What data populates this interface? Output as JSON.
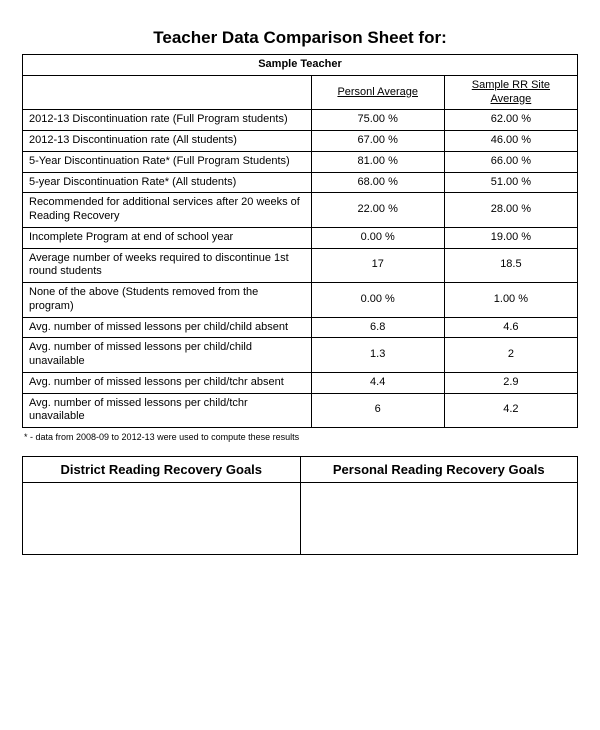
{
  "title": "Teacher Data Comparison Sheet for:",
  "teacher_name": "Sample Teacher",
  "columns": {
    "c1": "Personl Average",
    "c2": "Sample RR Site Average"
  },
  "rows": [
    {
      "label": "2012-13 Discontinuation rate (Full Program students)",
      "v1": "75.00 %",
      "v2": "62.00 %"
    },
    {
      "label": "2012-13 Discontinuation rate (All students)",
      "v1": "67.00 %",
      "v2": "46.00 %"
    },
    {
      "label": "5-Year Discontinuation Rate* (Full Program Students)",
      "v1": "81.00 %",
      "v2": "66.00 %"
    },
    {
      "label": "5-year Discontinuation Rate* (All students)",
      "v1": "68.00 %",
      "v2": "51.00 %"
    },
    {
      "label": "Recommended for additional services after 20 weeks of Reading Recovery",
      "v1": "22.00 %",
      "v2": "28.00 %"
    },
    {
      "label": "Incomplete Program at end of school year",
      "v1": "0.00 %",
      "v2": "19.00 %"
    },
    {
      "label": "Average number of weeks required to discontinue 1st round students",
      "v1": "17",
      "v2": "18.5"
    },
    {
      "label": "None of the above (Students removed from the program)",
      "v1": "0.00 %",
      "v2": "1.00 %"
    },
    {
      "label": "Avg. number of missed lessons per child/child absent",
      "v1": "6.8",
      "v2": "4.6"
    },
    {
      "label": "Avg. number of missed lessons per child/child unavailable",
      "v1": "1.3",
      "v2": "2"
    },
    {
      "label": "Avg. number of missed lessons per child/tchr absent",
      "v1": "4.4",
      "v2": "2.9"
    },
    {
      "label": "Avg. number of missed lessons per child/tchr unavailable",
      "v1": "6",
      "v2": "4.2"
    }
  ],
  "footnote": "* - data from 2008-09 to 2012-13 were used to compute these results",
  "goals": {
    "left": "District Reading Recovery Goals",
    "right": "Personal Reading Recovery Goals"
  },
  "style": {
    "border_color": "#000000",
    "background_color": "#ffffff",
    "text_color": "#000000",
    "title_fontsize": 17,
    "subtitle_fontsize": 13,
    "body_fontsize": 11,
    "header_fontsize": 10,
    "footnote_fontsize": 9
  }
}
